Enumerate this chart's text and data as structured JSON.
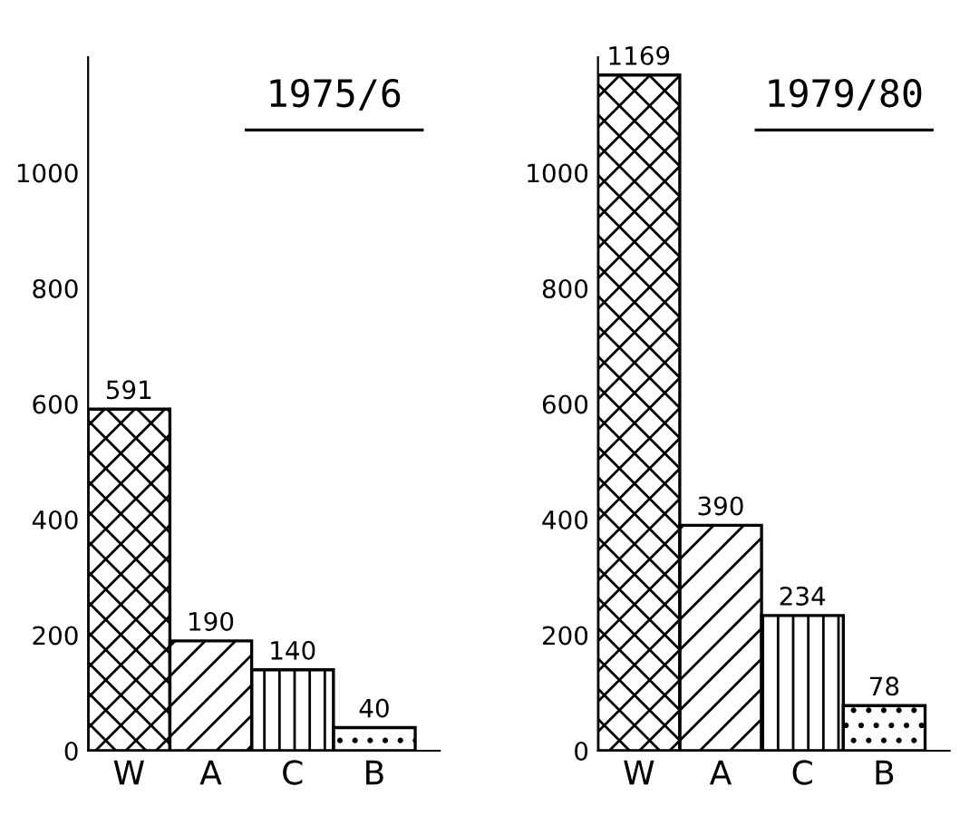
{
  "chart_data": [
    {
      "type": "bar",
      "title": "1975/6",
      "categories": [
        "W",
        "A",
        "C",
        "B"
      ],
      "values": [
        591,
        190,
        140,
        40
      ],
      "color": "#000000",
      "ylim": [
        0,
        1200
      ],
      "yticks": [
        0,
        200,
        400,
        600,
        800,
        1000
      ],
      "data_labels": true,
      "grid": false
    },
    {
      "type": "bar",
      "title": "1979/80",
      "categories": [
        "W",
        "A",
        "C",
        "B"
      ],
      "values": [
        1169,
        390,
        234,
        78
      ],
      "color": "#000000",
      "ylim": [
        0,
        1200
      ],
      "yticks": [
        0,
        200,
        400,
        600,
        800,
        1000
      ],
      "data_labels": true,
      "grid": false
    }
  ]
}
